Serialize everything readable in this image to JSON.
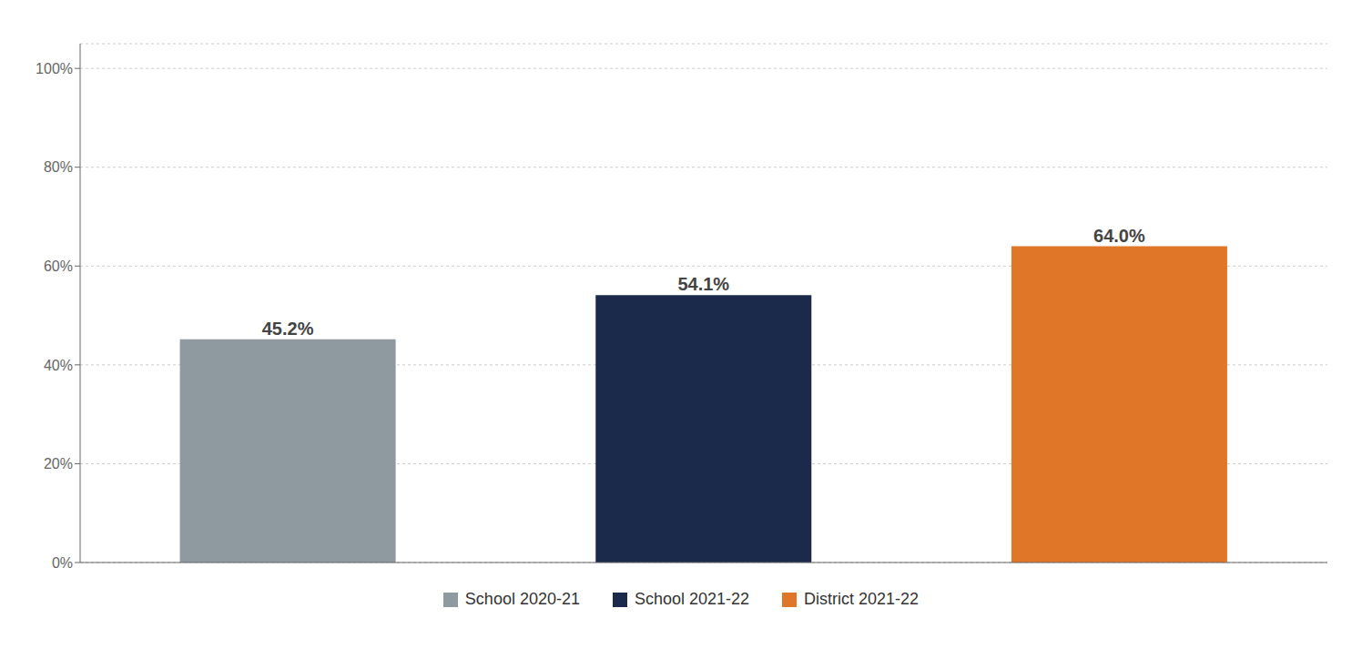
{
  "chart_data": {
    "type": "bar",
    "categories": [
      "School 2020-21",
      "School 2021-22",
      "District 2021-22"
    ],
    "values": [
      45.2,
      54.1,
      64.0
    ],
    "value_labels": [
      "45.2%",
      "54.1%",
      "64.0%"
    ],
    "colors": [
      "#8e9aa0",
      "#1b2a4a",
      "#e07628"
    ],
    "ylim": [
      0,
      105
    ],
    "yticks": [
      {
        "value": 0,
        "label": "0%"
      },
      {
        "value": 20,
        "label": "20%"
      },
      {
        "value": 40,
        "label": "40%"
      },
      {
        "value": 60,
        "label": "60%"
      },
      {
        "value": 80,
        "label": "80%"
      },
      {
        "value": 100,
        "label": "100%"
      }
    ],
    "grid": true,
    "data_labels": true,
    "tick_labels": "y",
    "legend": "bottom"
  }
}
